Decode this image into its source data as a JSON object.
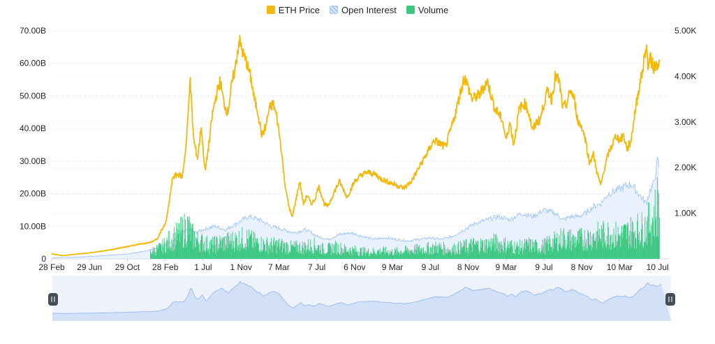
{
  "legend": [
    {
      "label": "ETH Price",
      "color": "#f0b90b",
      "icon": "square-swatch"
    },
    {
      "label": "Open Interest",
      "color": "#a9c8f5",
      "icon": "square-swatch-hatched"
    },
    {
      "label": "Volume",
      "color": "#3cc781",
      "icon": "square-swatch"
    }
  ],
  "chart_data": {
    "type": "line",
    "grid": true,
    "legend_position": "top-center",
    "x_tick_labels": [
      "28 Feb",
      "29 Jun",
      "29 Oct",
      "28 Feb",
      "1 Jul",
      "1 Nov",
      "7 Mar",
      "7 Jul",
      "6 Nov",
      "9 Mar",
      "9 Jul",
      "8 Nov",
      "9 Mar",
      "9 Jul",
      "8 Nov",
      "10 Mar",
      "10 Jul"
    ],
    "x_range": [
      0,
      16.3
    ],
    "left_axis": {
      "ticks": [
        "0",
        "10.00B",
        "20.00B",
        "30.00B",
        "40.00B",
        "50.00B",
        "60.00B",
        "70.00B"
      ],
      "ylim": [
        0,
        70
      ]
    },
    "right_axis": {
      "ticks": [
        "1.00K",
        "2.00K",
        "3.00K",
        "4.00K",
        "5.00K"
      ],
      "ylim": [
        0,
        5000
      ]
    },
    "series": [
      {
        "name": "ETH Price",
        "axis": "right",
        "color": "#f0b90b",
        "kind": "line",
        "x": [
          0,
          0.3,
          0.6,
          1,
          1.5,
          2,
          2.3,
          2.6,
          2.8,
          2.9,
          3.0,
          3.05,
          3.2,
          3.35,
          3.45,
          3.55,
          3.6,
          3.65,
          3.75,
          3.85,
          3.95,
          4.05,
          4.15,
          4.25,
          4.35,
          4.45,
          4.55,
          4.65,
          4.75,
          4.85,
          4.95,
          5.05,
          5.15,
          5.25,
          5.35,
          5.45,
          5.55,
          5.65,
          5.75,
          5.85,
          5.95,
          6.05,
          6.15,
          6.25,
          6.35,
          6.45,
          6.55,
          6.65,
          6.75,
          6.85,
          6.95,
          7.05,
          7.2,
          7.3,
          7.45,
          7.6,
          7.8,
          8.0,
          8.2,
          8.35,
          8.55,
          8.7,
          9.0,
          9.3,
          9.5,
          9.7,
          9.9,
          10.1,
          10.4,
          10.6,
          10.9,
          11.1,
          11.3,
          11.5,
          11.7,
          11.9,
          12.0,
          12.1,
          12.2,
          12.35,
          12.5,
          12.6,
          12.7,
          12.8,
          12.9,
          13.0,
          13.1,
          13.2,
          13.3,
          13.4,
          13.5,
          13.6,
          13.7,
          13.8,
          13.9,
          14.0,
          14.1,
          14.2,
          14.3,
          14.4,
          14.5,
          14.6,
          14.7,
          14.8,
          14.9,
          15.0,
          15.1,
          15.2,
          15.3,
          15.4,
          15.5,
          15.6,
          15.7,
          15.75,
          15.8,
          15.85,
          15.9,
          15.95,
          16.0,
          16.05
        ],
        "y": [
          110,
          70,
          100,
          130,
          190,
          270,
          320,
          360,
          440,
          640,
          750,
          950,
          1800,
          1850,
          1800,
          2500,
          3100,
          4000,
          2600,
          2200,
          2900,
          1900,
          2500,
          3200,
          3600,
          3900,
          3400,
          3200,
          3800,
          4200,
          4800,
          4500,
          4300,
          4000,
          3500,
          3200,
          2700,
          2900,
          3300,
          3400,
          3100,
          2500,
          1700,
          1200,
          900,
          1300,
          1700,
          1200,
          1400,
          1200,
          1300,
          1600,
          1200,
          1150,
          1450,
          1700,
          1350,
          1700,
          1850,
          1900,
          1850,
          1750,
          1650,
          1550,
          1700,
          2000,
          2300,
          2600,
          2450,
          3000,
          4000,
          3500,
          3600,
          3900,
          3300,
          3050,
          2600,
          3000,
          2500,
          3300,
          3400,
          3200,
          2800,
          3000,
          3050,
          3400,
          3700,
          3500,
          4000,
          3900,
          3300,
          3400,
          3700,
          3500,
          3000,
          2900,
          2600,
          2100,
          2300,
          1900,
          1600,
          2000,
          2300,
          2500,
          2700,
          2600,
          2700,
          2400,
          2600,
          3200,
          3700,
          4100,
          4700,
          4200,
          4400,
          4300,
          4200,
          4250,
          4300,
          4300
        ]
      },
      {
        "name": "Open Interest",
        "axis": "left",
        "color": "#a9c8f5",
        "kind": "area",
        "x": [
          0,
          1,
          2,
          2.5,
          2.8,
          3.0,
          3.2,
          3.4,
          3.6,
          3.8,
          4.0,
          4.3,
          4.6,
          4.9,
          5.2,
          5.5,
          5.8,
          6.1,
          6.4,
          6.7,
          7.0,
          7.3,
          7.6,
          7.9,
          8.2,
          8.5,
          8.8,
          9.1,
          9.4,
          9.7,
          10.0,
          10.3,
          10.6,
          10.9,
          11.2,
          11.5,
          11.8,
          12.1,
          12.4,
          12.7,
          13.0,
          13.3,
          13.5,
          13.7,
          13.9,
          14.1,
          14.3,
          14.5,
          14.7,
          14.9,
          15.1,
          15.3,
          15.5,
          15.7,
          15.8,
          15.9,
          16.0,
          16.05
        ],
        "y": [
          0.3,
          0.7,
          1.5,
          2.5,
          3.5,
          4.5,
          5.5,
          7.5,
          9,
          8,
          9,
          10,
          9,
          11,
          13,
          12,
          10,
          9,
          8,
          9,
          7,
          6,
          7.5,
          8,
          7,
          6,
          6.5,
          6,
          5.5,
          6,
          6.5,
          6,
          7,
          9,
          11,
          12,
          13,
          12,
          14,
          13,
          15,
          14,
          12,
          13,
          13,
          14,
          16,
          17,
          20,
          21,
          22,
          23,
          20,
          17,
          21,
          23,
          30,
          28
        ]
      },
      {
        "name": "Volume",
        "axis": "left",
        "color": "#3cc781",
        "kind": "bar",
        "x": [
          0,
          1,
          2,
          2.6,
          2.9,
          3.1,
          3.3,
          3.45,
          3.6,
          3.7,
          3.85,
          4.0,
          4.2,
          4.5,
          4.8,
          5.1,
          5.4,
          5.7,
          6.0,
          6.3,
          6.6,
          6.9,
          7.2,
          7.5,
          7.8,
          8.1,
          8.4,
          8.7,
          9.0,
          9.3,
          9.6,
          9.9,
          10.2,
          10.5,
          10.8,
          11.1,
          11.4,
          11.7,
          12.0,
          12.3,
          12.6,
          12.9,
          13.2,
          13.5,
          13.8,
          14.1,
          14.4,
          14.7,
          15.0,
          15.3,
          15.6,
          15.8,
          15.9,
          16.0,
          16.05
        ],
        "y": [
          0.1,
          0.3,
          1.2,
          3,
          5,
          8,
          10,
          12,
          14,
          10,
          8,
          7,
          6,
          7,
          8,
          9,
          7,
          6,
          6,
          5,
          5,
          6,
          4,
          5,
          4,
          3.5,
          3,
          3.5,
          3,
          3.5,
          4,
          4.5,
          5,
          4,
          5,
          6,
          6,
          7,
          6,
          5,
          6,
          5,
          7,
          9,
          8,
          9,
          10,
          11,
          10,
          12,
          13,
          16,
          18,
          25,
          20
        ]
      }
    ]
  }
}
